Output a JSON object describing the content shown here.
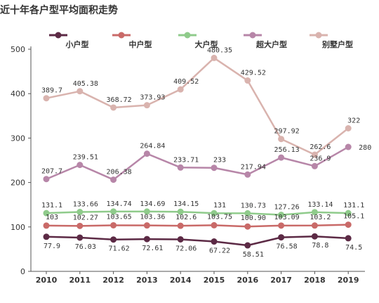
{
  "chart_data": {
    "type": "line",
    "title": "近十年各户型平均面积走势",
    "categories": [
      "2010",
      "2011",
      "2012",
      "2013",
      "2014",
      "2015",
      "2016",
      "2017",
      "2018",
      "2019"
    ],
    "ylim": [
      0,
      500
    ],
    "yticks": [
      0,
      100,
      200,
      300,
      400,
      500
    ],
    "grid": false,
    "legend_position": "top",
    "series": [
      {
        "name": "小户型",
        "color": "#5c2a45",
        "values": [
          77.9,
          76.03,
          71.62,
          72.61,
          72.06,
          67.22,
          58.51,
          76.58,
          78.8,
          74.5
        ],
        "labels": [
          "77.9",
          "76.03",
          "71.62",
          "72.61",
          "72.06",
          "67.22",
          "58.51",
          "76.58",
          "78.8",
          "74.5"
        ]
      },
      {
        "name": "中户型",
        "color": "#c96a68",
        "values": [
          103,
          102.27,
          103.65,
          103.36,
          102.6,
          103.75,
          100.9,
          103.09,
          103.2,
          105.1
        ],
        "labels": [
          "103",
          "102.27",
          "103.65",
          "103.36",
          "102.6",
          "103.75",
          "100.90",
          "103.09",
          "103.2",
          "105.1"
        ]
      },
      {
        "name": "大户型",
        "color": "#8fcb8b",
        "values": [
          131.1,
          133.66,
          134.74,
          134.69,
          134.15,
          131,
          130.73,
          127.26,
          133.14,
          131.1
        ],
        "labels": [
          "131.1",
          "133.66",
          "134.74",
          "134.69",
          "134.15",
          "131",
          "130.73",
          "127.26",
          "133.14",
          "131.1"
        ]
      },
      {
        "name": "超大户型",
        "color": "#b786a8",
        "values": [
          207.7,
          239.51,
          206.38,
          264.84,
          233.71,
          233,
          217.94,
          256.13,
          236.9,
          280
        ],
        "labels": [
          "207.7",
          "239.51",
          "206.38",
          "264.84",
          "233.71",
          "233",
          "217.94",
          "256.13",
          "236.9",
          "280"
        ]
      },
      {
        "name": "别墅户型",
        "color": "#d9b3ae",
        "values": [
          389.7,
          405.38,
          368.72,
          373.93,
          409.52,
          480.35,
          429.52,
          297.92,
          262.6,
          322
        ],
        "labels": [
          "389.7",
          "405.38",
          "368.72",
          "373.93",
          "409.52",
          "480.35",
          "429.52",
          "297.92",
          "262.6",
          "322"
        ]
      }
    ]
  }
}
